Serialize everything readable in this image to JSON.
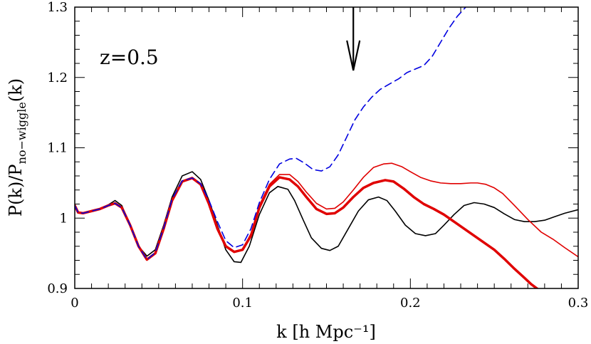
{
  "chart_data": {
    "type": "line",
    "annotation": "z=0.5",
    "xlabel": "k [h Mpc⁻¹]",
    "ylabel_main": "P(k)/P",
    "ylabel_sub": "no−wiggle",
    "ylabel_tail": "(k)",
    "xlim": [
      0,
      0.3
    ],
    "ylim": [
      0.9,
      1.3
    ],
    "x_ticks": [
      0,
      0.1,
      0.2,
      0.3
    ],
    "x_tick_labels": [
      "0",
      "0.1",
      "0.2",
      "0.3"
    ],
    "y_ticks": [
      0.9,
      1.0,
      1.1,
      1.2,
      1.3
    ],
    "y_tick_labels": [
      "0.9",
      "1",
      "1.1",
      "1.2",
      "1.3"
    ],
    "arrow_x": 0.166,
    "series": [
      {
        "color": "#000000",
        "style": "solid",
        "weight": "thin",
        "x": [
          0,
          0.002,
          0.005,
          0.01,
          0.015,
          0.02,
          0.024,
          0.028,
          0.033,
          0.038,
          0.043,
          0.048,
          0.053,
          0.058,
          0.064,
          0.07,
          0.075,
          0.08,
          0.085,
          0.09,
          0.095,
          0.099,
          0.104,
          0.11,
          0.116,
          0.121,
          0.127,
          0.131,
          0.136,
          0.141,
          0.147,
          0.152,
          0.157,
          0.163,
          0.169,
          0.175,
          0.181,
          0.186,
          0.191,
          0.197,
          0.203,
          0.209,
          0.215,
          0.22,
          0.226,
          0.232,
          0.238,
          0.244,
          0.25,
          0.256,
          0.262,
          0.268,
          0.274,
          0.28,
          0.286,
          0.292,
          0.3
        ],
        "y": [
          1.018,
          1.008,
          1.007,
          1.01,
          1.013,
          1.019,
          1.025,
          1.018,
          0.99,
          0.96,
          0.946,
          0.955,
          0.99,
          1.03,
          1.06,
          1.066,
          1.055,
          1.025,
          0.99,
          0.955,
          0.938,
          0.937,
          0.96,
          1.005,
          1.036,
          1.045,
          1.041,
          1.025,
          0.998,
          0.972,
          0.957,
          0.954,
          0.96,
          0.985,
          1.01,
          1.026,
          1.03,
          1.025,
          1.01,
          0.99,
          0.978,
          0.975,
          0.978,
          0.99,
          1.005,
          1.018,
          1.022,
          1.02,
          1.015,
          1.006,
          0.998,
          0.995,
          0.995,
          0.997,
          1.002,
          1.007,
          1.012
        ]
      },
      {
        "color": "#e00000",
        "style": "solid",
        "weight": "thick",
        "x": [
          0,
          0.002,
          0.005,
          0.01,
          0.015,
          0.02,
          0.024,
          0.028,
          0.033,
          0.038,
          0.043,
          0.048,
          0.053,
          0.058,
          0.064,
          0.07,
          0.075,
          0.08,
          0.085,
          0.09,
          0.095,
          0.1,
          0.105,
          0.11,
          0.116,
          0.122,
          0.128,
          0.133,
          0.138,
          0.144,
          0.15,
          0.155,
          0.16,
          0.166,
          0.172,
          0.178,
          0.185,
          0.19,
          0.196,
          0.202,
          0.208,
          0.214,
          0.22,
          0.226,
          0.232,
          0.238,
          0.244,
          0.25,
          0.256,
          0.262,
          0.268,
          0.272,
          0.276
        ],
        "y": [
          1.018,
          1.008,
          1.007,
          1.01,
          1.013,
          1.018,
          1.021,
          1.015,
          0.99,
          0.96,
          0.941,
          0.95,
          0.985,
          1.025,
          1.052,
          1.057,
          1.048,
          1.02,
          0.985,
          0.96,
          0.952,
          0.955,
          0.975,
          1.015,
          1.045,
          1.058,
          1.055,
          1.045,
          1.03,
          1.013,
          1.006,
          1.007,
          1.015,
          1.03,
          1.043,
          1.05,
          1.054,
          1.052,
          1.042,
          1.03,
          1.02,
          1.013,
          1.005,
          0.995,
          0.985,
          0.975,
          0.965,
          0.955,
          0.942,
          0.928,
          0.915,
          0.906,
          0.899
        ]
      },
      {
        "color": "#e00000",
        "style": "solid",
        "weight": "thin",
        "x": [
          0.1,
          0.105,
          0.11,
          0.116,
          0.122,
          0.128,
          0.133,
          0.138,
          0.144,
          0.15,
          0.155,
          0.16,
          0.166,
          0.172,
          0.178,
          0.184,
          0.189,
          0.195,
          0.2,
          0.206,
          0.212,
          0.218,
          0.224,
          0.23,
          0.236,
          0.24,
          0.245,
          0.25,
          0.255,
          0.262,
          0.27,
          0.278,
          0.285,
          0.292,
          0.3
        ],
        "y": [
          0.955,
          0.978,
          1.018,
          1.048,
          1.062,
          1.062,
          1.052,
          1.037,
          1.021,
          1.013,
          1.014,
          1.023,
          1.04,
          1.058,
          1.072,
          1.077,
          1.078,
          1.073,
          1.066,
          1.058,
          1.053,
          1.05,
          1.049,
          1.049,
          1.05,
          1.05,
          1.048,
          1.043,
          1.035,
          1.018,
          0.998,
          0.98,
          0.97,
          0.958,
          0.945
        ]
      },
      {
        "color": "#0000e0",
        "style": "dashed",
        "weight": "thin",
        "x": [
          0,
          0.002,
          0.005,
          0.01,
          0.015,
          0.02,
          0.024,
          0.028,
          0.033,
          0.038,
          0.043,
          0.048,
          0.053,
          0.058,
          0.064,
          0.07,
          0.075,
          0.08,
          0.085,
          0.09,
          0.095,
          0.1,
          0.105,
          0.11,
          0.116,
          0.122,
          0.128,
          0.132,
          0.137,
          0.142,
          0.147,
          0.152,
          0.157,
          0.162,
          0.167,
          0.172,
          0.177,
          0.182,
          0.187,
          0.193,
          0.198,
          0.203,
          0.208,
          0.213,
          0.218,
          0.223,
          0.228,
          0.233
        ],
        "y": [
          1.018,
          1.008,
          1.007,
          1.01,
          1.013,
          1.018,
          1.021,
          1.015,
          0.99,
          0.96,
          0.941,
          0.951,
          0.986,
          1.027,
          1.053,
          1.057,
          1.049,
          1.025,
          0.995,
          0.968,
          0.958,
          0.962,
          0.985,
          1.022,
          1.055,
          1.077,
          1.084,
          1.085,
          1.078,
          1.069,
          1.067,
          1.073,
          1.09,
          1.115,
          1.14,
          1.158,
          1.172,
          1.183,
          1.19,
          1.198,
          1.207,
          1.212,
          1.217,
          1.23,
          1.25,
          1.27,
          1.287,
          1.3
        ]
      }
    ]
  }
}
